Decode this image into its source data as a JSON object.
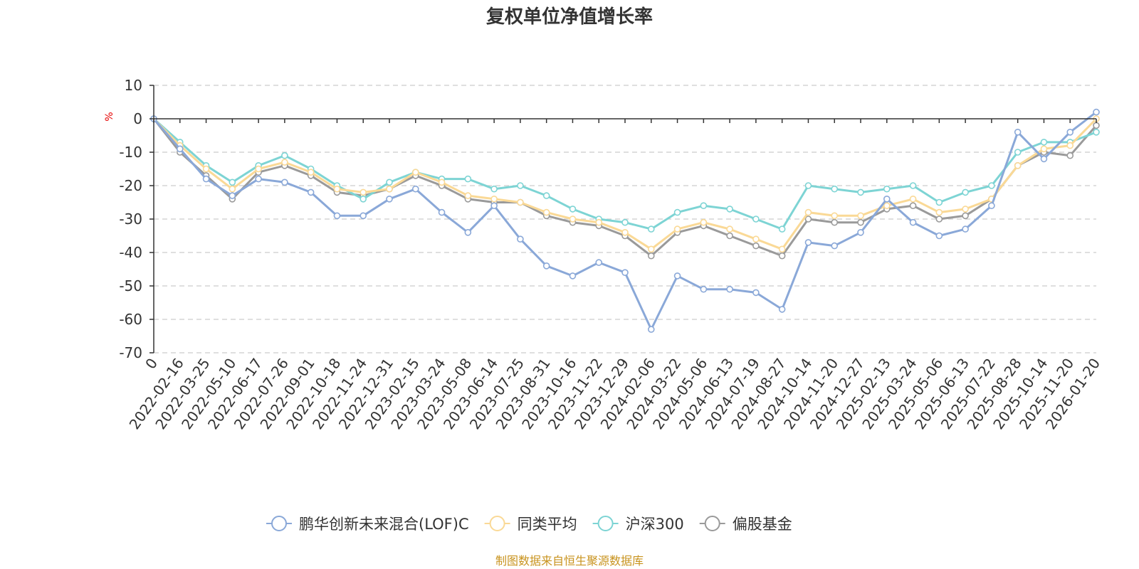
{
  "chart_data": {
    "type": "line",
    "title": "复权单位净值增长率",
    "ylabel": "%",
    "ylim": [
      -70,
      10
    ],
    "yticks": [
      10,
      0,
      -10,
      -20,
      -30,
      -40,
      -50,
      -60,
      -70
    ],
    "grid": true,
    "legend_position": "bottom",
    "categories": [
      "0",
      "2022-02-16",
      "2022-03-25",
      "2022-05-10",
      "2022-06-17",
      "2022-07-26",
      "2022-09-01",
      "2022-10-18",
      "2022-11-24",
      "2022-12-31",
      "2023-02-15",
      "2023-03-24",
      "2023-05-08",
      "2023-06-14",
      "2023-07-25",
      "2023-08-31",
      "2023-10-16",
      "2023-11-22",
      "2023-12-29",
      "2024-02-06",
      "2024-03-22",
      "2024-05-06",
      "2024-06-13",
      "2024-07-19",
      "2024-08-27",
      "2024-10-14",
      "2024-11-20",
      "2024-12-27",
      "2025-02-13",
      "2025-03-24",
      "2025-05-06",
      "2025-06-13",
      "2025-07-22",
      "2025-08-28",
      "2025-10-14",
      "2025-11-20",
      "2026-01-20"
    ],
    "series": [
      {
        "name": "鹏华创新未来混合(LOF)C",
        "color": "#8aa8d8",
        "values": [
          0,
          -9,
          -18,
          -23,
          -18,
          -19,
          -22,
          -29,
          -29,
          -24,
          -21,
          -28,
          -34,
          -26,
          -36,
          -44,
          -47,
          -43,
          -46,
          -63,
          -47,
          -51,
          -51,
          -52,
          -57,
          -37,
          -38,
          -34,
          -24,
          -31,
          -35,
          -33,
          -26,
          -4,
          -12,
          -4,
          2
        ]
      },
      {
        "name": "同类平均",
        "color": "#fad996",
        "values": [
          0,
          -8,
          -15,
          -21,
          -15,
          -13,
          -16,
          -21,
          -22,
          -21,
          -16,
          -19,
          -23,
          -24,
          -25,
          -28,
          -30,
          -31,
          -34,
          -39,
          -33,
          -31,
          -33,
          -36,
          -39,
          -28,
          -29,
          -29,
          -26,
          -24,
          -28,
          -27,
          -24,
          -14,
          -9,
          -8,
          0
        ]
      },
      {
        "name": "沪深300",
        "color": "#7dd4d4",
        "values": [
          0,
          -7,
          -14,
          -19,
          -14,
          -11,
          -15,
          -20,
          -24,
          -19,
          -16,
          -18,
          -18,
          -21,
          -20,
          -23,
          -27,
          -30,
          -31,
          -33,
          -28,
          -26,
          -27,
          -30,
          -33,
          -20,
          -21,
          -22,
          -21,
          -20,
          -25,
          -22,
          -20,
          -10,
          -7,
          -7,
          -4
        ]
      },
      {
        "name": "偏股基金",
        "color": "#9a9a9a",
        "values": [
          0,
          -10,
          -17,
          -24,
          -16,
          -14,
          -17,
          -22,
          -23,
          -21,
          -17,
          -20,
          -24,
          -25,
          -25,
          -29,
          -31,
          -32,
          -35,
          -41,
          -34,
          -32,
          -35,
          -38,
          -41,
          -30,
          -31,
          -31,
          -27,
          -26,
          -30,
          -29,
          -24,
          -14,
          -10,
          -11,
          -2
        ]
      }
    ]
  },
  "source_text": "制图数据来自恒生聚源数据库"
}
